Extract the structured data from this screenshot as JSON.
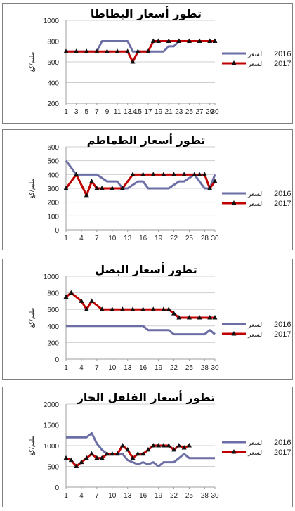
{
  "legend_year_2016": "2016",
  "legend_year_2017": "2017",
  "legend_suffix": "السعر",
  "ylabel": "مليم/كغ",
  "colors": {
    "series_2016": "#6b6fa6",
    "series_2017": "#c00000"
  },
  "chart_data": [
    {
      "type": "line",
      "title": "تطور أسعار البطاطا",
      "x_ticks": [
        1,
        3,
        5,
        7,
        9,
        11,
        13,
        14,
        15,
        17,
        19,
        21,
        23,
        25,
        27,
        29,
        30
      ],
      "ylim": [
        200,
        1000
      ],
      "y_ticks": [
        200,
        400,
        600,
        800,
        1000
      ],
      "grid": true,
      "legend_position": "right",
      "series": [
        {
          "name": "2016",
          "label": "السعر 2016",
          "points": [
            [
              1,
              700
            ],
            [
              7,
              700
            ],
            [
              8,
              800
            ],
            [
              13,
              800
            ],
            [
              14,
              700
            ],
            [
              20,
              700
            ],
            [
              21,
              750
            ],
            [
              22,
              750
            ],
            [
              23,
              800
            ],
            [
              30,
              800
            ]
          ]
        },
        {
          "name": "2017",
          "label": "السعر 2017",
          "points": [
            [
              1,
              700
            ],
            [
              3,
              700
            ],
            [
              5,
              700
            ],
            [
              7,
              700
            ],
            [
              9,
              700
            ],
            [
              11,
              700
            ],
            [
              13,
              700
            ],
            [
              14,
              600
            ],
            [
              15,
              700
            ],
            [
              17,
              700
            ],
            [
              18,
              800
            ],
            [
              19,
              800
            ],
            [
              21,
              800
            ],
            [
              23,
              800
            ],
            [
              25,
              800
            ],
            [
              27,
              800
            ],
            [
              29,
              800
            ],
            [
              30,
              800
            ]
          ]
        }
      ]
    },
    {
      "type": "line",
      "title": "تطور أسعار الطماطم",
      "x_ticks": [
        1,
        4,
        7,
        10,
        13,
        16,
        19,
        22,
        25,
        28,
        30
      ],
      "ylim": [
        0,
        600
      ],
      "y_ticks": [
        0,
        100,
        200,
        300,
        400,
        500,
        600
      ],
      "grid": true,
      "legend_position": "right",
      "series": [
        {
          "name": "2016",
          "label": "السعر 2016",
          "points": [
            [
              1,
              500
            ],
            [
              3,
              400
            ],
            [
              7,
              400
            ],
            [
              9,
              350
            ],
            [
              11,
              350
            ],
            [
              12,
              300
            ],
            [
              13,
              300
            ],
            [
              15,
              350
            ],
            [
              16,
              350
            ],
            [
              17,
              300
            ],
            [
              21,
              300
            ],
            [
              23,
              350
            ],
            [
              24,
              350
            ],
            [
              26,
              400
            ],
            [
              28,
              300
            ],
            [
              29,
              300
            ],
            [
              30,
              400
            ]
          ]
        },
        {
          "name": "2017",
          "label": "السعر 2017",
          "points": [
            [
              1,
              300
            ],
            [
              3,
              400
            ],
            [
              5,
              250
            ],
            [
              6,
              350
            ],
            [
              7,
              300
            ],
            [
              8,
              300
            ],
            [
              10,
              300
            ],
            [
              12,
              300
            ],
            [
              14,
              400
            ],
            [
              16,
              400
            ],
            [
              18,
              400
            ],
            [
              20,
              400
            ],
            [
              22,
              400
            ],
            [
              24,
              400
            ],
            [
              26,
              400
            ],
            [
              27,
              400
            ],
            [
              28,
              400
            ],
            [
              29,
              300
            ],
            [
              30,
              350
            ]
          ]
        }
      ]
    },
    {
      "type": "line",
      "title": "تطور أسعار البصل",
      "x_ticks": [
        1,
        4,
        7,
        10,
        13,
        16,
        19,
        22,
        25,
        28,
        30
      ],
      "ylim": [
        0,
        1000
      ],
      "y_ticks": [
        0,
        200,
        400,
        600,
        800,
        1000
      ],
      "grid": true,
      "legend_position": "right",
      "series": [
        {
          "name": "2016",
          "label": "السعر 2016",
          "points": [
            [
              1,
              400
            ],
            [
              16,
              400
            ],
            [
              17,
              350
            ],
            [
              21,
              350
            ],
            [
              22,
              300
            ],
            [
              28,
              300
            ],
            [
              29,
              350
            ],
            [
              30,
              300
            ]
          ]
        },
        {
          "name": "2017",
          "label": "السعر 2017",
          "points": [
            [
              1,
              750
            ],
            [
              2,
              800
            ],
            [
              4,
              700
            ],
            [
              5,
              600
            ],
            [
              6,
              700
            ],
            [
              8,
              600
            ],
            [
              10,
              600
            ],
            [
              12,
              600
            ],
            [
              14,
              600
            ],
            [
              16,
              600
            ],
            [
              18,
              600
            ],
            [
              20,
              600
            ],
            [
              21,
              600
            ],
            [
              22,
              550
            ],
            [
              23,
              500
            ],
            [
              25,
              500
            ],
            [
              27,
              500
            ],
            [
              29,
              500
            ],
            [
              30,
              500
            ]
          ]
        }
      ]
    },
    {
      "type": "line",
      "title": "تطور أسعار الفلفل الحار",
      "x_ticks": [
        1,
        4,
        7,
        10,
        13,
        16,
        19,
        22,
        25,
        28,
        30
      ],
      "ylim": [
        0,
        2000
      ],
      "y_ticks": [
        0,
        500,
        1000,
        1500,
        2000
      ],
      "grid": true,
      "legend_position": "right",
      "series": [
        {
          "name": "2016",
          "label": "السعر 2016",
          "points": [
            [
              1,
              1200
            ],
            [
              3,
              1200
            ],
            [
              5,
              1200
            ],
            [
              6,
              1300
            ],
            [
              7,
              1050
            ],
            [
              8,
              900
            ],
            [
              9,
              800
            ],
            [
              10,
              800
            ],
            [
              11,
              800
            ],
            [
              12,
              800
            ],
            [
              13,
              650
            ],
            [
              14,
              600
            ],
            [
              15,
              550
            ],
            [
              16,
              600
            ],
            [
              17,
              550
            ],
            [
              18,
              600
            ],
            [
              19,
              500
            ],
            [
              20,
              600
            ],
            [
              21,
              600
            ],
            [
              22,
              600
            ],
            [
              23,
              700
            ],
            [
              24,
              800
            ],
            [
              25,
              700
            ],
            [
              26,
              700
            ],
            [
              28,
              700
            ],
            [
              30,
              700
            ]
          ]
        },
        {
          "name": "2017",
          "label": "السعر 2017",
          "points": [
            [
              1,
              700
            ],
            [
              2,
              650
            ],
            [
              3,
              500
            ],
            [
              4,
              600
            ],
            [
              5,
              700
            ],
            [
              6,
              800
            ],
            [
              7,
              700
            ],
            [
              8,
              700
            ],
            [
              9,
              800
            ],
            [
              10,
              800
            ],
            [
              11,
              800
            ],
            [
              12,
              1000
            ],
            [
              13,
              900
            ],
            [
              14,
              700
            ],
            [
              15,
              800
            ],
            [
              16,
              800
            ],
            [
              17,
              900
            ],
            [
              18,
              1000
            ],
            [
              19,
              1000
            ],
            [
              20,
              1000
            ],
            [
              21,
              1000
            ],
            [
              22,
              900
            ],
            [
              23,
              1000
            ],
            [
              24,
              950
            ],
            [
              25,
              1000
            ]
          ]
        }
      ]
    }
  ]
}
